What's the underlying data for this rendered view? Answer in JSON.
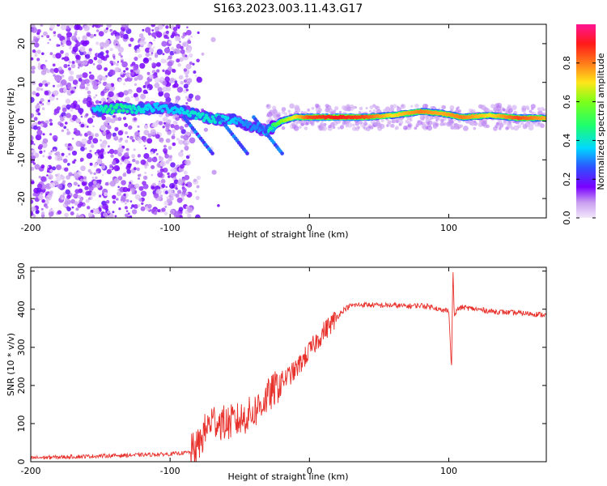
{
  "title": "S163.2023.003.11.43.G17",
  "colors": {
    "snr_line": "#e8302b",
    "colormap": [
      "#e6c8f2",
      "#b77fe8",
      "#7a00ff",
      "#3b2bff",
      "#2f7bff",
      "#00e5ff",
      "#1fff3a",
      "#a8ff1a",
      "#ffe51a",
      "#ff7a1a",
      "#ff1a1a",
      "#ff1493"
    ]
  },
  "chart_data": [
    {
      "type": "heatmap",
      "title": "S163.2023.003.11.43.G17",
      "xlabel": "Height of straight line (km)",
      "ylabel": "Frequency (Hz)",
      "xlim": [
        -200,
        170
      ],
      "ylim": [
        -25,
        25
      ],
      "x_ticks": [
        -200,
        -100,
        0,
        100
      ],
      "x_tick_labels": [
        "-200",
        "-100",
        "0",
        "100"
      ],
      "y_ticks": [
        -20,
        -10,
        0,
        10,
        20
      ],
      "y_tick_labels": [
        "-20",
        "-10",
        "0",
        "10",
        "20"
      ],
      "colorbar": {
        "label": "Normalized spectral amplitude",
        "range": [
          0.0,
          1.0
        ],
        "ticks": [
          0.0,
          0.2,
          0.4,
          0.6,
          0.8
        ],
        "tick_labels": [
          "0.0",
          "0.2",
          "0.4",
          "0.6",
          "0.8"
        ]
      },
      "ridge": [
        {
          "x": -155,
          "y": 2.5,
          "amp": 0.35
        },
        {
          "x": -145,
          "y": 3.0,
          "amp": 0.45
        },
        {
          "x": -135,
          "y": 3.5,
          "amp": 0.45
        },
        {
          "x": -125,
          "y": 3.0,
          "amp": 0.4
        },
        {
          "x": -110,
          "y": 3.5,
          "amp": 0.35
        },
        {
          "x": -95,
          "y": 3.0,
          "amp": 0.35
        },
        {
          "x": -85,
          "y": 2.0,
          "amp": 0.4
        },
        {
          "x": -75,
          "y": 1.0,
          "amp": 0.4
        },
        {
          "x": -65,
          "y": 0.5,
          "amp": 0.4
        },
        {
          "x": -55,
          "y": 0.5,
          "amp": 0.35
        },
        {
          "x": -45,
          "y": -1.0,
          "amp": 0.3
        },
        {
          "x": -35,
          "y": -2.0,
          "amp": 0.3
        },
        {
          "x": -30,
          "y": -2.5,
          "amp": 0.4
        },
        {
          "x": -20,
          "y": 0.0,
          "amp": 0.6
        },
        {
          "x": -10,
          "y": 1.0,
          "amp": 0.7
        },
        {
          "x": 0,
          "y": 1.0,
          "amp": 0.85
        },
        {
          "x": 20,
          "y": 1.0,
          "amp": 0.9
        },
        {
          "x": 40,
          "y": 1.0,
          "amp": 0.85
        },
        {
          "x": 60,
          "y": 1.5,
          "amp": 0.7
        },
        {
          "x": 80,
          "y": 2.5,
          "amp": 0.8
        },
        {
          "x": 95,
          "y": 2.0,
          "amp": 0.75
        },
        {
          "x": 110,
          "y": 1.0,
          "amp": 0.8
        },
        {
          "x": 130,
          "y": 1.5,
          "amp": 0.7
        },
        {
          "x": 150,
          "y": 0.8,
          "amp": 0.85
        },
        {
          "x": 170,
          "y": 0.8,
          "amp": 0.75
        }
      ]
    },
    {
      "type": "line",
      "xlabel": "Height of straight line (km)",
      "ylabel": "SNR (10 * v/v)",
      "xlim": [
        -200,
        170
      ],
      "ylim": [
        0,
        510
      ],
      "x_ticks": [
        -200,
        -100,
        0,
        100
      ],
      "x_tick_labels": [
        "-200",
        "-100",
        "0",
        "100"
      ],
      "y_ticks": [
        0,
        100,
        200,
        300,
        400,
        500
      ],
      "y_tick_labels": [
        "0",
        "100",
        "200",
        "300",
        "400",
        "500"
      ],
      "series": [
        {
          "x": [
            -200,
            -150,
            -100,
            -85,
            -80,
            -75,
            -70,
            -60,
            -50,
            -40,
            -30,
            -25,
            -20,
            -10,
            0,
            10,
            20,
            25,
            30,
            40,
            50,
            60,
            70,
            80,
            90,
            95,
            100,
            102,
            103,
            104,
            106,
            110,
            120,
            130,
            140,
            150,
            160,
            170
          ],
          "y": [
            10,
            15,
            20,
            25,
            40,
            80,
            110,
            100,
            110,
            130,
            170,
            190,
            210,
            240,
            290,
            340,
            380,
            400,
            410,
            412,
            410,
            410,
            408,
            410,
            405,
            395,
            400,
            240,
            510,
            380,
            400,
            405,
            400,
            395,
            392,
            390,
            388,
            385
          ]
        }
      ]
    }
  ]
}
